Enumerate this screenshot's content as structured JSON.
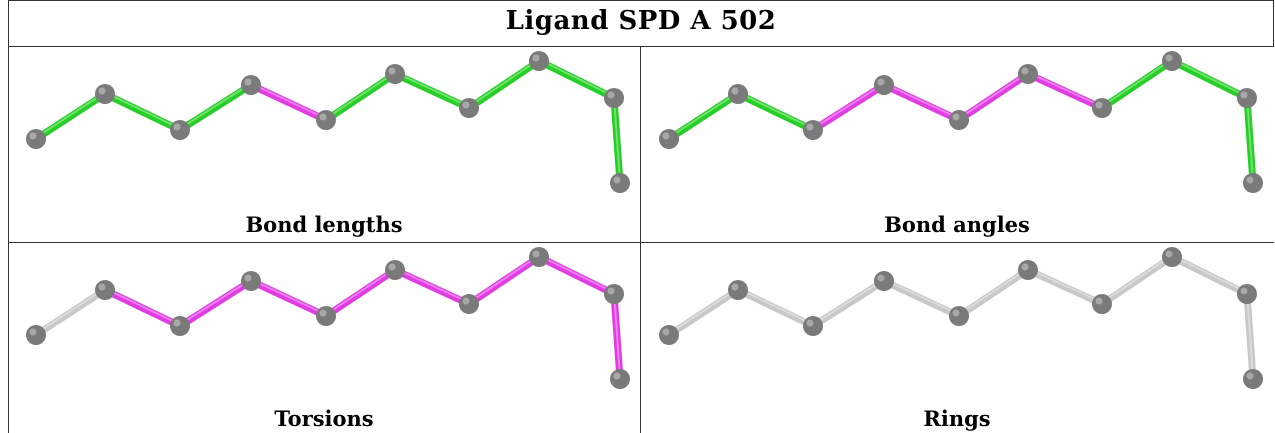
{
  "title": "Ligand SPD A 502",
  "colors": {
    "flagged": "#e13be4",
    "ok": "#26cf26",
    "neutral": "#c8c8c8",
    "atom": "#7a7a7a"
  },
  "panels": [
    {
      "caption": "Bond lengths",
      "bond_status": [
        "ok",
        "ok",
        "ok",
        "flagged",
        "ok",
        "ok",
        "ok",
        "ok",
        "ok",
        "ok"
      ]
    },
    {
      "caption": "Bond angles",
      "bond_status": [
        "ok",
        "ok",
        "flagged",
        "flagged",
        "flagged",
        "flagged",
        "ok",
        "ok",
        "ok",
        "ok"
      ]
    },
    {
      "caption": "Torsions",
      "bond_status": [
        "neutral",
        "flagged",
        "flagged",
        "flagged",
        "flagged",
        "flagged",
        "flagged",
        "flagged",
        "flagged",
        "neutral"
      ]
    },
    {
      "caption": "Rings",
      "bond_status": [
        "neutral",
        "neutral",
        "neutral",
        "neutral",
        "neutral",
        "neutral",
        "neutral",
        "neutral",
        "neutral",
        "neutral"
      ]
    }
  ]
}
